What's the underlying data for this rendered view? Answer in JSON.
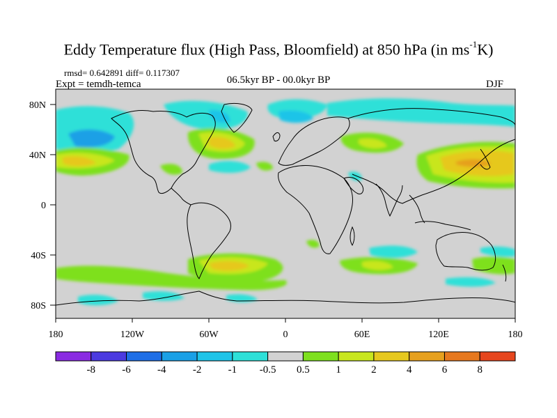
{
  "title": {
    "prefix": "Eddy Temperature flux (High Pass, Bloomfield) at 850 hPa (in ms",
    "superscript": "-1",
    "suffix": "K)"
  },
  "stats_line": "rmsd= 0.642891  diff= 0.117307",
  "experiment": "Expt = temdh-temca",
  "period": "06.5kyr BP - 00.0kyr BP",
  "season": "DJF",
  "axes": {
    "lat_ticks": [
      "80N",
      "40N",
      "0",
      "40S",
      "80S"
    ],
    "lon_ticks": [
      "180",
      "120W",
      "60W",
      "0",
      "60E",
      "120E",
      "180"
    ]
  },
  "colorbar": {
    "labels": [
      "-8",
      "-6",
      "-4",
      "-2",
      "-1",
      "-0.5",
      "0.5",
      "1",
      "2",
      "4",
      "6",
      "8"
    ],
    "colors": [
      "#8a2be2",
      "#4b3ae0",
      "#1e6ee6",
      "#1aa0e6",
      "#1ec4e8",
      "#2de0d8",
      "#d2d2d2",
      "#7ee01e",
      "#c8e61e",
      "#e6c81e",
      "#e6a01e",
      "#e6781e",
      "#e6461e"
    ]
  },
  "colors": {
    "background_field": "#d2d2d2",
    "neg_strong": "#1aa0e6",
    "neg_weak": "#2de0d8",
    "pos_weak": "#7ee01e",
    "pos_mid": "#c8e61e",
    "pos_strong": "#e6c81e",
    "coastline": "#000000"
  }
}
